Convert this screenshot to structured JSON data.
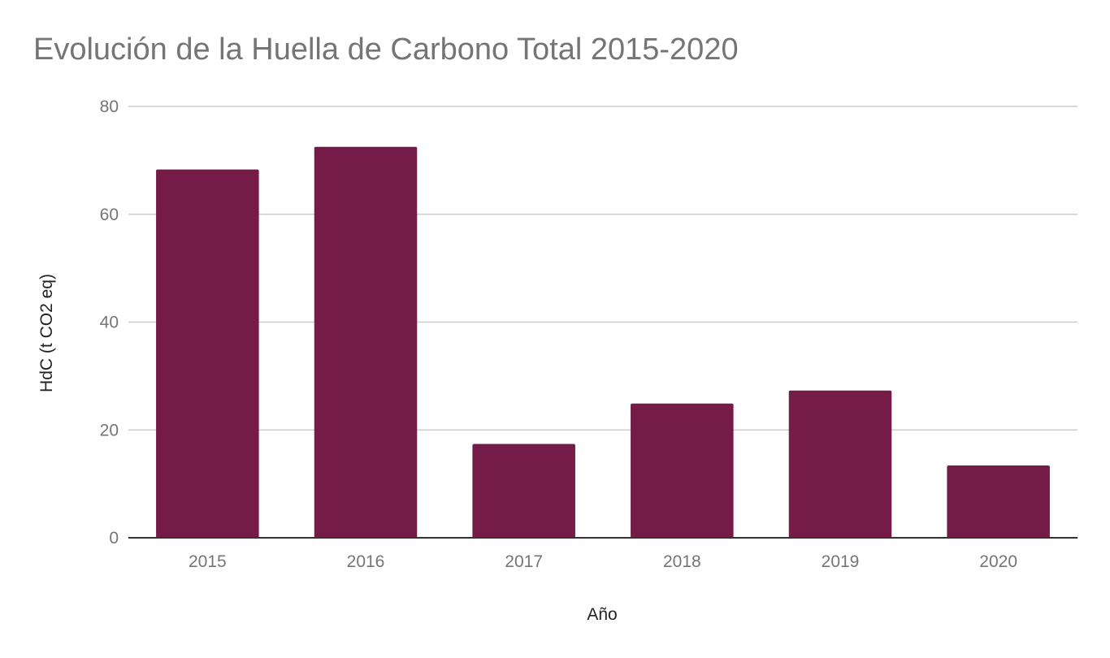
{
  "colors": {
    "bar": "#741b47",
    "gridline": "#cccccc",
    "baseline": "#333333",
    "title": "#757575",
    "tick_label": "#757575",
    "axis_title": "#222222"
  },
  "chart_data": {
    "type": "bar",
    "title": "Evolución de la Huella de Carbono Total 2015-2020",
    "xlabel": "Año",
    "ylabel": "HdC (t CO2 eq)",
    "categories": [
      "2015",
      "2016",
      "2017",
      "2018",
      "2019",
      "2020"
    ],
    "values": [
      68.3,
      72.5,
      17.4,
      24.9,
      27.3,
      13.4
    ],
    "ylim": [
      0,
      80
    ],
    "yticks": [
      "0",
      "20",
      "40",
      "60",
      "80"
    ],
    "grid": true,
    "legend": "none"
  }
}
